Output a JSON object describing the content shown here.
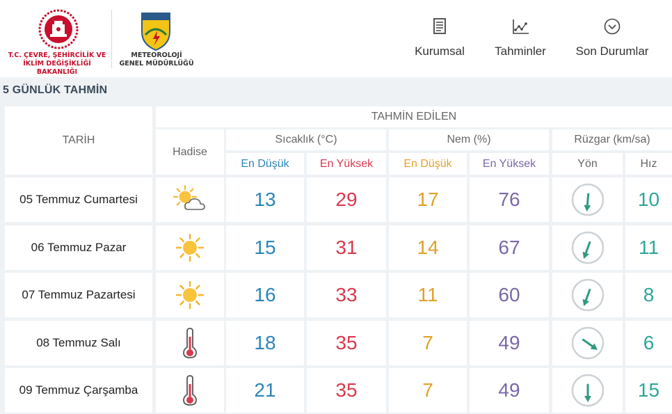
{
  "header": {
    "ministry_text_line1": "T.C. ÇEVRE, ŞEHİRCİLİK VE",
    "ministry_text_line2": "İKLİM DEĞİŞİKLİĞİ BAKANLIĞI",
    "mgm_logo_text": "METEOROLOJİ",
    "mgm_text_line1": "METEOROLOJİ",
    "mgm_text_line2": "GENEL MÜDÜRLÜĞÜ",
    "nav": [
      {
        "label": "Kurumsal",
        "icon": "document-icon"
      },
      {
        "label": "Tahminler",
        "icon": "chart-icon"
      },
      {
        "label": "Son Durumlar",
        "icon": "chevron-circle-icon"
      }
    ]
  },
  "section_title": "5 GÜNLÜK TAHMİN",
  "table": {
    "col_date": "TARİH",
    "group_forecast": "TAHMİN EDİLEN",
    "col_event": "Hadise",
    "group_temp": "Sıcaklık (°C)",
    "group_humidity": "Nem (%)",
    "group_wind": "Rüzgar (km/sa)",
    "temp_low": "En Düşük",
    "temp_high": "En Yüksek",
    "hum_low": "En Düşük",
    "hum_high": "En Yüksek",
    "wind_dir": "Yön",
    "wind_speed": "Hız",
    "rows": [
      {
        "date": "05 Temmuz Cumartesi",
        "icon": "partly-cloudy-icon",
        "t_low": "13",
        "t_high": "29",
        "h_low": "17",
        "h_high": "76",
        "wind_dir_deg": 185,
        "wind_speed": "10"
      },
      {
        "date": "06 Temmuz Pazar",
        "icon": "sun-icon",
        "t_low": "15",
        "t_high": "31",
        "h_low": "14",
        "h_high": "67",
        "wind_dir_deg": 200,
        "wind_speed": "11"
      },
      {
        "date": "07 Temmuz Pazartesi",
        "icon": "sun-icon",
        "t_low": "16",
        "t_high": "33",
        "h_low": "11",
        "h_high": "60",
        "wind_dir_deg": 200,
        "wind_speed": "8"
      },
      {
        "date": "08 Temmuz Salı",
        "icon": "thermometer-icon",
        "t_low": "18",
        "t_high": "35",
        "h_low": "7",
        "h_high": "49",
        "wind_dir_deg": 125,
        "wind_speed": "6"
      },
      {
        "date": "09 Temmuz Çarşamba",
        "icon": "thermometer-icon",
        "t_low": "21",
        "t_high": "35",
        "h_low": "7",
        "h_high": "49",
        "wind_dir_deg": 180,
        "wind_speed": "15"
      }
    ]
  },
  "colors": {
    "temp_low": "#2a86b8",
    "temp_high": "#d9394e",
    "hum_low": "#e0a12a",
    "hum_high": "#7a68a8",
    "wind": "#2fa59a"
  }
}
